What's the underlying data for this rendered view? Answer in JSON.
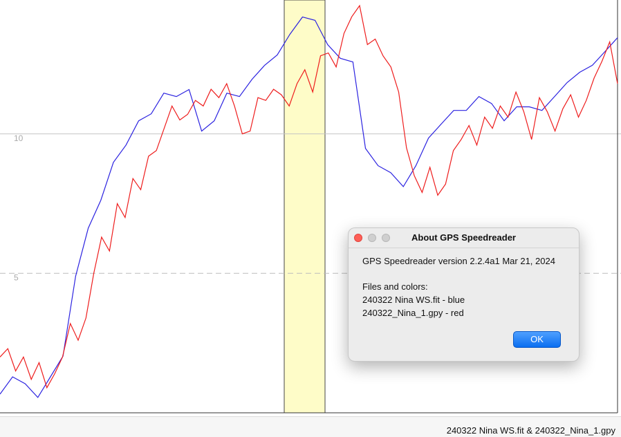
{
  "chart_data": {
    "type": "line",
    "ylim": [
      0,
      14.8
    ],
    "yticks": [
      5,
      10
    ],
    "grid": true,
    "series": [
      {
        "color": "#2b22e0",
        "values": [
          0.67,
          1.29,
          1.04,
          0.55,
          1.29,
          2.03,
          4.89,
          6.62,
          7.62,
          8.98,
          9.6,
          10.47,
          10.72,
          11.46,
          11.34,
          11.59,
          10.1,
          10.47,
          11.46,
          11.34,
          11.96,
          12.46,
          12.83,
          13.57,
          14.19,
          14.07,
          13.2,
          12.71,
          12.58,
          9.48,
          8.86,
          8.61,
          8.11,
          8.86,
          9.85,
          10.35,
          10.84,
          10.84,
          11.34,
          11.09,
          10.47,
          10.97,
          10.97,
          10.84,
          11.34,
          11.84,
          12.21,
          12.46,
          12.95,
          13.45
        ]
      },
      {
        "color": "#ee1c1c",
        "values": [
          2.0,
          2.3,
          1.5,
          2.0,
          1.2,
          1.8,
          0.9,
          1.4,
          2.0,
          3.2,
          2.6,
          3.4,
          5.0,
          6.3,
          5.8,
          7.5,
          7.0,
          8.4,
          8.0,
          9.2,
          9.4,
          10.2,
          11.0,
          10.5,
          10.7,
          11.2,
          11.0,
          11.6,
          11.3,
          11.8,
          11.0,
          10.0,
          10.1,
          11.3,
          11.2,
          11.6,
          11.4,
          11.0,
          11.8,
          12.3,
          11.5,
          12.8,
          12.9,
          12.4,
          13.6,
          14.2,
          14.6,
          13.2,
          13.4,
          12.8,
          12.4,
          11.5,
          9.5,
          8.5,
          7.9,
          8.8,
          7.8,
          8.2,
          9.4,
          9.8,
          10.3,
          9.6,
          10.6,
          10.2,
          11.0,
          10.6,
          11.5,
          10.8,
          9.8,
          11.3,
          10.8,
          10.1,
          10.9,
          11.4,
          10.6,
          11.2,
          12.0,
          12.6,
          13.3,
          11.8
        ]
      }
    ]
  },
  "dialog": {
    "title": "About GPS Speedreader",
    "version": "GPS Speedreader version 2.2.4a1 Mar 21, 2024",
    "files_heading": "Files and colors:",
    "files": [
      "240322 Nina WS.fit - blue",
      "240322_Nina_1.gpy - red"
    ],
    "button": "OK"
  },
  "status": "240322 Nina WS.fit & 240322_Nina_1.gpy"
}
